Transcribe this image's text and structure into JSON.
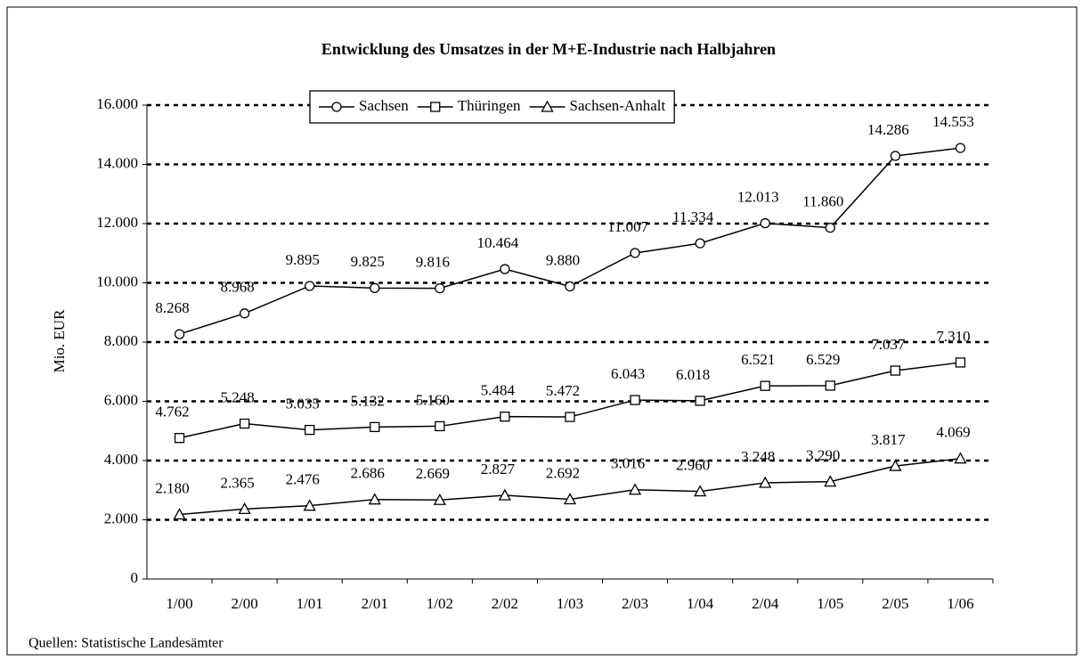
{
  "chart_data": {
    "type": "line",
    "title": "Entwicklung des Umsatzes in der M+E-Industrie nach Halbjahren",
    "y_label": "Mio. EUR",
    "source": "Quellen: Statistische Landesämter",
    "categories": [
      "1/00",
      "2/00",
      "1/01",
      "2/01",
      "1/02",
      "2/02",
      "1/03",
      "2/03",
      "1/04",
      "2/04",
      "1/05",
      "2/05",
      "1/06"
    ],
    "series": [
      {
        "name": "Sachsen",
        "color": "#000000",
        "marker": "circle",
        "values": [
          8268,
          8968,
          9895,
          9825,
          9816,
          10464,
          9880,
          11007,
          11334,
          12013,
          11860,
          14286,
          14553
        ],
        "value_labels": [
          "8.268",
          "8.968",
          "9.895",
          "9.825",
          "9.816",
          "10.464",
          "9.880",
          "11.007",
          "11.334",
          "12.013",
          "11.860",
          "14.286",
          "14.553"
        ]
      },
      {
        "name": "Thüringen",
        "color": "#000000",
        "marker": "square",
        "values": [
          4762,
          5248,
          5035,
          5132,
          5160,
          5484,
          5472,
          6043,
          6018,
          6521,
          6529,
          7037,
          7310
        ],
        "value_labels": [
          "4.762",
          "5.248",
          "5.035",
          "5.132",
          "5.160",
          "5.484",
          "5.472",
          "6.043",
          "6.018",
          "6.521",
          "6.529",
          "7.037",
          "7.310"
        ]
      },
      {
        "name": "Sachsen-Anhalt",
        "color": "#000000",
        "marker": "triangle",
        "values": [
          2180,
          2365,
          2476,
          2686,
          2669,
          2827,
          2692,
          3016,
          2960,
          3248,
          3290,
          3817,
          4069
        ],
        "value_labels": [
          "2.180",
          "2.365",
          "2.476",
          "2.686",
          "2.669",
          "2.827",
          "2.692",
          "3.016",
          "2.960",
          "3.248",
          "3.290",
          "3.817",
          "4.069"
        ]
      }
    ],
    "ylim": [
      0,
      16000
    ],
    "yticks": [
      0,
      {
        "value": 2000,
        "label": "2.000"
      },
      {
        "value": 4000,
        "label": "4.000"
      },
      {
        "value": 6000,
        "label": "6.000"
      },
      {
        "value": 8000,
        "label": "8.000"
      },
      {
        "value": 10000,
        "label": "10.000"
      },
      {
        "value": 12000,
        "label": "12.000"
      },
      {
        "value": 14000,
        "label": "14.000"
      },
      {
        "value": 16000,
        "label": "16.000"
      }
    ],
    "grid": true,
    "legend_position": "top"
  }
}
